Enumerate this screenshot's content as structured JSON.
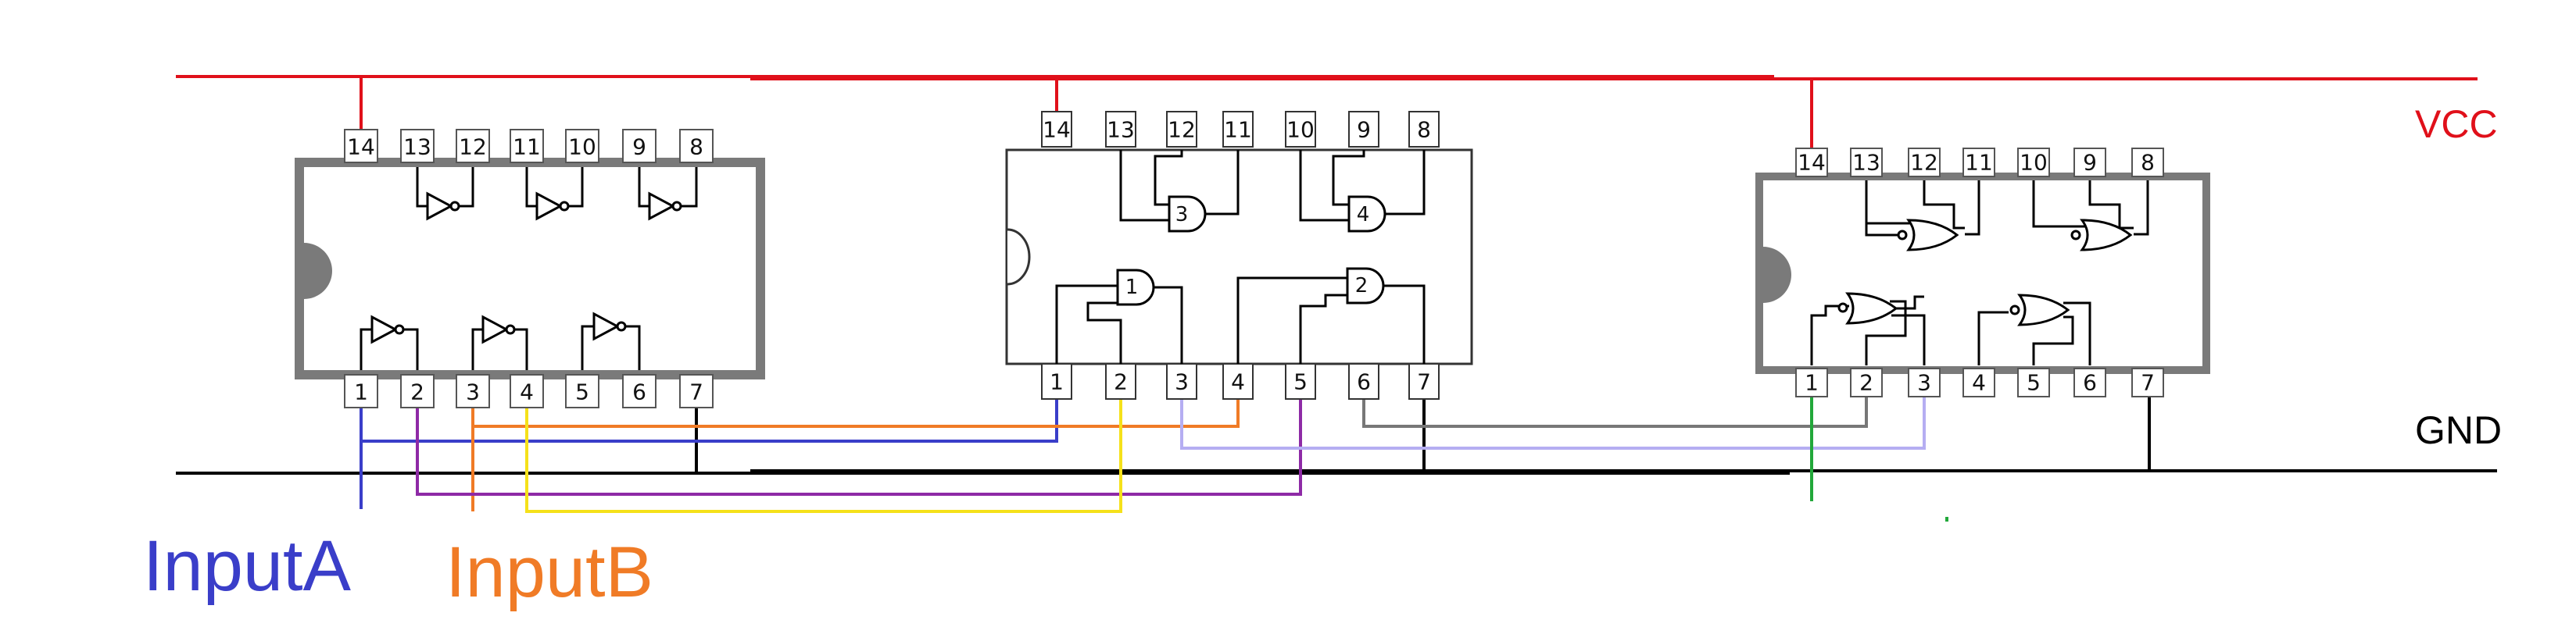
{
  "rails": {
    "vcc": {
      "label": "VCC",
      "color": "#e0101a"
    },
    "gnd": {
      "label": "GND",
      "color": "#000000"
    }
  },
  "inputs": [
    {
      "label": "InputA",
      "color": "#3a3ec9"
    },
    {
      "label": "InputB",
      "color": "#f07b26"
    }
  ],
  "chips": [
    {
      "name": "chip-not",
      "gate_type": "NOT",
      "top_pins": [
        "14",
        "13",
        "12",
        "11",
        "10",
        "9",
        "8"
      ],
      "bottom_pins": [
        "1",
        "2",
        "3",
        "4",
        "5",
        "6",
        "7"
      ]
    },
    {
      "name": "chip-and",
      "gate_type": "AND",
      "top_pins": [
        "14",
        "13",
        "12",
        "11",
        "10",
        "9",
        "8"
      ],
      "bottom_pins": [
        "1",
        "2",
        "3",
        "4",
        "5",
        "6",
        "7"
      ],
      "gate_labels": [
        "1",
        "2",
        "3",
        "4"
      ]
    },
    {
      "name": "chip-nor",
      "gate_type": "NOR",
      "top_pins": [
        "14",
        "13",
        "12",
        "11",
        "10",
        "9",
        "8"
      ],
      "bottom_pins": [
        "1",
        "2",
        "3",
        "4",
        "5",
        "6",
        "7"
      ]
    }
  ],
  "wire_colors": {
    "inputA": "#3a3ec9",
    "inputB": "#f07b26",
    "purple": "#8e2aa6",
    "yellow": "#f5e11a",
    "lavender": "#b5aef2",
    "gray": "#777777",
    "green": "#22a83a"
  }
}
